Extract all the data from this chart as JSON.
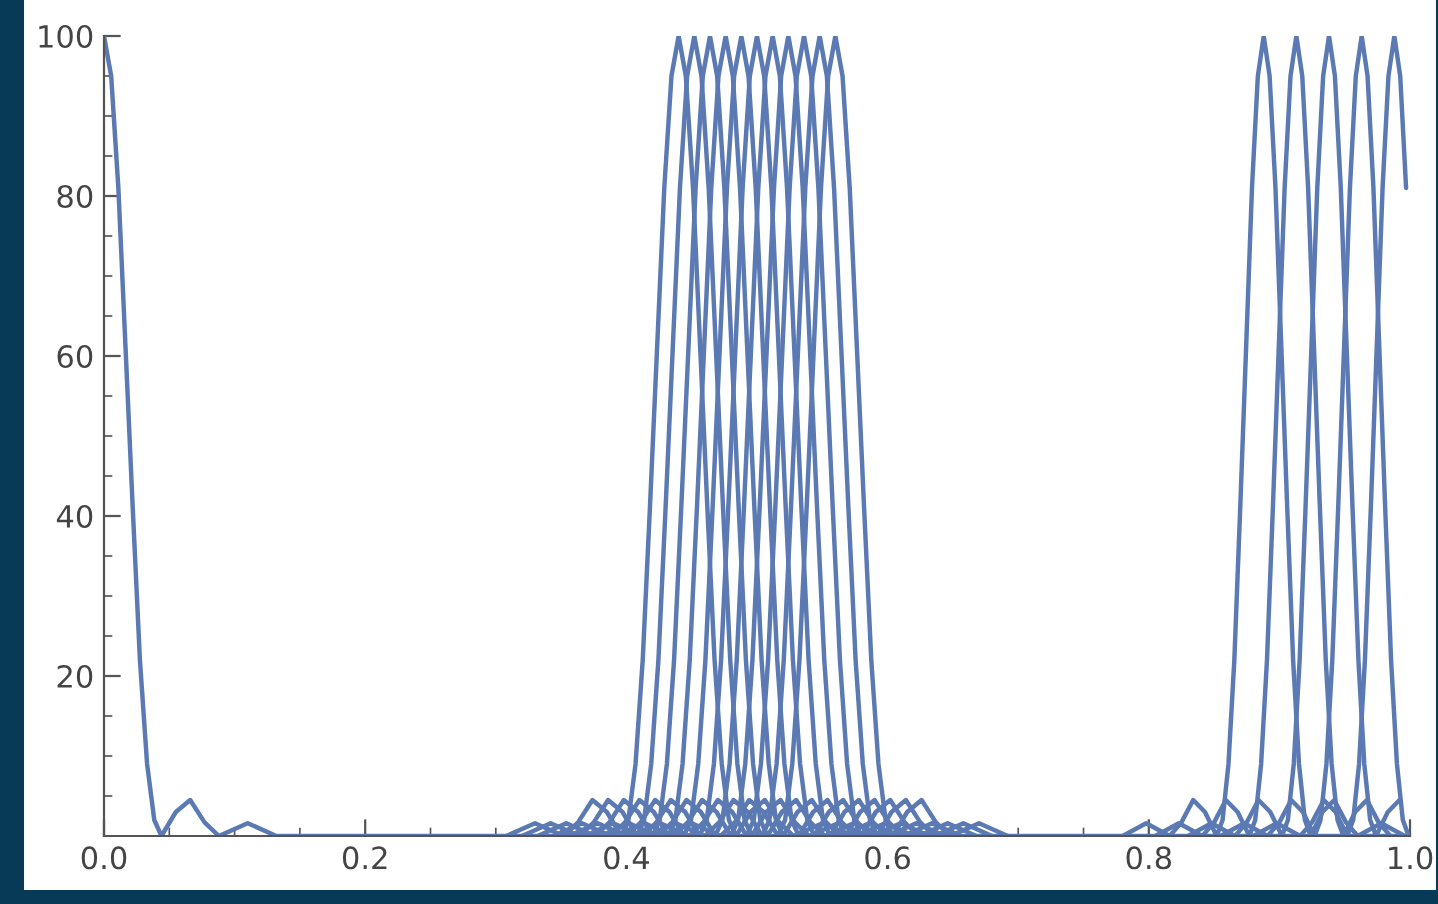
{
  "chart_data": {
    "type": "line",
    "xlim": [
      0,
      1.0
    ],
    "ylim": [
      0,
      100
    ],
    "xticks": [
      {
        "value": 0,
        "label": "0.0"
      },
      0.2,
      0.4,
      0.6,
      0.8,
      {
        "value": 1.0,
        "label": "1.0"
      }
    ],
    "yticks": [
      20,
      40,
      60,
      80,
      100
    ],
    "series": [
      {
        "color": "#5b79b3",
        "x": [
          0,
          0.0055,
          0.011,
          0.0165,
          0.022,
          0.0275,
          0.033,
          0.0385,
          0.044,
          0.055,
          0.066,
          0.077,
          0.088,
          0.11,
          0.132,
          1.0
        ],
        "values": [
          100,
          95,
          81,
          61,
          41,
          22,
          9,
          2,
          0,
          3,
          4.5,
          1.7,
          0,
          1.6,
          0,
          0
        ]
      },
      {
        "color": "#5b79b3",
        "x": [
          0.308,
          0.33,
          0.352,
          0.363,
          0.374,
          0.385,
          0.396,
          0.4015,
          0.407,
          0.4125,
          0.418,
          0.4235,
          0.429,
          0.4345,
          0.44,
          0.4455,
          0.451,
          0.4565,
          0.462,
          0.4675,
          0.473,
          0.4785,
          0.484,
          0.495,
          0.506,
          0.517,
          0.528,
          0.55,
          0.572
        ],
        "values": [
          0,
          1.6,
          0,
          1.7,
          4.5,
          3,
          0,
          2,
          9,
          22,
          41,
          61,
          81,
          95,
          100,
          95,
          81,
          61,
          41,
          22,
          9,
          2,
          0,
          3,
          4.5,
          1.7,
          0,
          1.6,
          0
        ]
      },
      {
        "color": "#5b79b3",
        "x": [
          0.32,
          0.342,
          0.364,
          0.375,
          0.386,
          0.397,
          0.408,
          0.4135,
          0.419,
          0.4245,
          0.43,
          0.4355,
          0.441,
          0.4465,
          0.452,
          0.4575,
          0.463,
          0.4685,
          0.474,
          0.4795,
          0.485,
          0.4905,
          0.496,
          0.507,
          0.518,
          0.529,
          0.54,
          0.562,
          0.584
        ],
        "values": [
          0,
          1.6,
          0,
          1.7,
          4.5,
          3,
          0,
          2,
          9,
          22,
          41,
          61,
          81,
          95,
          100,
          95,
          81,
          61,
          41,
          22,
          9,
          2,
          0,
          3,
          4.5,
          1.7,
          0,
          1.6,
          0
        ]
      },
      {
        "color": "#5b79b3",
        "x": [
          0.332,
          0.354,
          0.376,
          0.387,
          0.398,
          0.409,
          0.42,
          0.4255,
          0.431,
          0.4365,
          0.442,
          0.4475,
          0.453,
          0.4585,
          0.464,
          0.4695,
          0.475,
          0.4805,
          0.486,
          0.4915,
          0.497,
          0.5025,
          0.508,
          0.519,
          0.53,
          0.541,
          0.552,
          0.574,
          0.596
        ],
        "values": [
          0,
          1.6,
          0,
          1.7,
          4.5,
          3,
          0,
          2,
          9,
          22,
          41,
          61,
          81,
          95,
          100,
          95,
          81,
          61,
          41,
          22,
          9,
          2,
          0,
          3,
          4.5,
          1.7,
          0,
          1.6,
          0
        ]
      },
      {
        "color": "#5b79b3",
        "x": [
          0.344,
          0.366,
          0.388,
          0.399,
          0.41,
          0.421,
          0.432,
          0.4375,
          0.443,
          0.4485,
          0.454,
          0.4595,
          0.465,
          0.4705,
          0.476,
          0.4815,
          0.487,
          0.4925,
          0.498,
          0.5035,
          0.509,
          0.5145,
          0.52,
          0.531,
          0.542,
          0.553,
          0.564,
          0.586,
          0.608
        ],
        "values": [
          0,
          1.6,
          0,
          1.7,
          4.5,
          3,
          0,
          2,
          9,
          22,
          41,
          61,
          81,
          95,
          100,
          95,
          81,
          61,
          41,
          22,
          9,
          2,
          0,
          3,
          4.5,
          1.7,
          0,
          1.6,
          0
        ]
      },
      {
        "color": "#5b79b3",
        "x": [
          0.356,
          0.378,
          0.4,
          0.411,
          0.422,
          0.433,
          0.444,
          0.4495,
          0.455,
          0.4605,
          0.466,
          0.4715,
          0.477,
          0.4825,
          0.488,
          0.4935,
          0.499,
          0.5045,
          0.51,
          0.5155,
          0.521,
          0.5265,
          0.532,
          0.543,
          0.554,
          0.565,
          0.576,
          0.598,
          0.62
        ],
        "values": [
          0,
          1.6,
          0,
          1.7,
          4.5,
          3,
          0,
          2,
          9,
          22,
          41,
          61,
          81,
          95,
          100,
          95,
          81,
          61,
          41,
          22,
          9,
          2,
          0,
          3,
          4.5,
          1.7,
          0,
          1.6,
          0
        ]
      },
      {
        "color": "#5b79b3",
        "x": [
          0.368,
          0.39,
          0.412,
          0.423,
          0.434,
          0.445,
          0.456,
          0.4615,
          0.467,
          0.4725,
          0.478,
          0.4835,
          0.489,
          0.4945,
          0.5,
          0.5055,
          0.511,
          0.5165,
          0.522,
          0.5275,
          0.533,
          0.5385,
          0.544,
          0.555,
          0.566,
          0.577,
          0.588,
          0.61,
          0.632
        ],
        "values": [
          0,
          1.6,
          0,
          1.7,
          4.5,
          3,
          0,
          2,
          9,
          22,
          41,
          61,
          81,
          95,
          100,
          95,
          81,
          61,
          41,
          22,
          9,
          2,
          0,
          3,
          4.5,
          1.7,
          0,
          1.6,
          0
        ]
      },
      {
        "color": "#5b79b3",
        "x": [
          0.38,
          0.402,
          0.424,
          0.435,
          0.446,
          0.457,
          0.468,
          0.4735,
          0.479,
          0.4845,
          0.49,
          0.4955,
          0.501,
          0.5065,
          0.512,
          0.5175,
          0.523,
          0.5285,
          0.534,
          0.5395,
          0.545,
          0.5505,
          0.556,
          0.567,
          0.578,
          0.589,
          0.6,
          0.622,
          0.644
        ],
        "values": [
          0,
          1.6,
          0,
          1.7,
          4.5,
          3,
          0,
          2,
          9,
          22,
          41,
          61,
          81,
          95,
          100,
          95,
          81,
          61,
          41,
          22,
          9,
          2,
          0,
          3,
          4.5,
          1.7,
          0,
          1.6,
          0
        ]
      },
      {
        "color": "#5b79b3",
        "x": [
          0.392,
          0.414,
          0.436,
          0.447,
          0.458,
          0.469,
          0.48,
          0.4855,
          0.491,
          0.4965,
          0.502,
          0.5075,
          0.513,
          0.5185,
          0.524,
          0.5295,
          0.535,
          0.5405,
          0.546,
          0.5515,
          0.557,
          0.5625,
          0.568,
          0.579,
          0.59,
          0.601,
          0.612,
          0.634,
          0.656
        ],
        "values": [
          0,
          1.6,
          0,
          1.7,
          4.5,
          3,
          0,
          2,
          9,
          22,
          41,
          61,
          81,
          95,
          100,
          95,
          81,
          61,
          41,
          22,
          9,
          2,
          0,
          3,
          4.5,
          1.7,
          0,
          1.6,
          0
        ]
      },
      {
        "color": "#5b79b3",
        "x": [
          0.404,
          0.426,
          0.448,
          0.459,
          0.47,
          0.481,
          0.492,
          0.4975,
          0.503,
          0.5085,
          0.514,
          0.5195,
          0.525,
          0.5305,
          0.536,
          0.5415,
          0.547,
          0.5525,
          0.558,
          0.5635,
          0.569,
          0.5745,
          0.58,
          0.591,
          0.602,
          0.613,
          0.624,
          0.646,
          0.668
        ],
        "values": [
          0,
          1.6,
          0,
          1.7,
          4.5,
          3,
          0,
          2,
          9,
          22,
          41,
          61,
          81,
          95,
          100,
          95,
          81,
          61,
          41,
          22,
          9,
          2,
          0,
          3,
          4.5,
          1.7,
          0,
          1.6,
          0
        ]
      },
      {
        "color": "#5b79b3",
        "x": [
          0.416,
          0.438,
          0.46,
          0.471,
          0.482,
          0.493,
          0.504,
          0.5095,
          0.515,
          0.5205,
          0.526,
          0.5315,
          0.537,
          0.5425,
          0.548,
          0.5535,
          0.559,
          0.5645,
          0.57,
          0.5755,
          0.581,
          0.5865,
          0.592,
          0.603,
          0.614,
          0.625,
          0.636,
          0.658,
          0.68
        ],
        "values": [
          0,
          1.6,
          0,
          1.7,
          4.5,
          3,
          0,
          2,
          9,
          22,
          41,
          61,
          81,
          95,
          100,
          95,
          81,
          61,
          41,
          22,
          9,
          2,
          0,
          3,
          4.5,
          1.7,
          0,
          1.6,
          0
        ]
      },
      {
        "color": "#5b79b3",
        "x": [
          0.428,
          0.45,
          0.472,
          0.483,
          0.494,
          0.505,
          0.516,
          0.5215,
          0.527,
          0.5325,
          0.538,
          0.5435,
          0.549,
          0.5545,
          0.56,
          0.5655,
          0.571,
          0.5765,
          0.582,
          0.5875,
          0.593,
          0.5985,
          0.604,
          0.615,
          0.626,
          0.637,
          0.648,
          0.67,
          0.692
        ],
        "values": [
          0,
          1.6,
          0,
          1.7,
          4.5,
          3,
          0,
          2,
          9,
          22,
          41,
          61,
          81,
          95,
          100,
          95,
          81,
          61,
          41,
          22,
          9,
          2,
          0,
          3,
          4.5,
          1.7,
          0,
          1.6,
          0
        ]
      },
      {
        "color": "#5b79b3",
        "x": [
          0.78,
          0.798,
          0.816,
          0.825,
          0.834,
          0.843,
          0.852,
          0.8565,
          0.861,
          0.8655,
          0.87,
          0.8745,
          0.879,
          0.8835,
          0.888,
          0.8925,
          0.897,
          0.9015,
          0.906,
          0.9105,
          0.915,
          0.9195,
          0.924,
          0.933,
          0.942,
          0.951,
          0.96,
          0.978,
          0.996
        ],
        "values": [
          0,
          1.6,
          0,
          1.7,
          4.5,
          3,
          0,
          2,
          9,
          22,
          41,
          61,
          81,
          95,
          100,
          95,
          81,
          61,
          41,
          22,
          9,
          2,
          0,
          3,
          4.5,
          1.7,
          0,
          1.6,
          0
        ]
      },
      {
        "color": "#5b79b3",
        "x": [
          0.805,
          0.823,
          0.841,
          0.85,
          0.859,
          0.868,
          0.877,
          0.8815,
          0.886,
          0.8905,
          0.895,
          0.8995,
          0.904,
          0.9085,
          0.913,
          0.9175,
          0.922,
          0.9265,
          0.931,
          0.9355,
          0.94,
          0.9445,
          0.949,
          0.958,
          0.967,
          0.976,
          0.985
        ],
        "values": [
          0,
          1.6,
          0,
          1.7,
          4.5,
          3,
          0,
          2,
          9,
          22,
          41,
          61,
          81,
          95,
          100,
          95,
          81,
          61,
          41,
          22,
          9,
          2,
          0,
          3,
          4.5,
          1.7,
          0
        ]
      },
      {
        "color": "#5b79b3",
        "x": [
          0.83,
          0.848,
          0.866,
          0.875,
          0.884,
          0.893,
          0.902,
          0.9065,
          0.911,
          0.9155,
          0.92,
          0.9245,
          0.929,
          0.9335,
          0.938,
          0.9425,
          0.947,
          0.9515,
          0.956,
          0.9605,
          0.965,
          0.9695,
          0.974,
          0.983,
          0.992
        ],
        "values": [
          0,
          1.6,
          0,
          1.7,
          4.5,
          3,
          0,
          2,
          9,
          22,
          41,
          61,
          81,
          95,
          100,
          95,
          81,
          61,
          41,
          22,
          9,
          2,
          0,
          3,
          4.5
        ]
      },
      {
        "color": "#5b79b3",
        "x": [
          0.855,
          0.873,
          0.891,
          0.9,
          0.909,
          0.918,
          0.927,
          0.9315,
          0.936,
          0.9405,
          0.945,
          0.9495,
          0.954,
          0.9585,
          0.963,
          0.9675,
          0.972,
          0.9765,
          0.981,
          0.9855,
          0.99,
          0.9945,
          0.999
        ],
        "values": [
          0,
          1.6,
          0,
          1.7,
          4.5,
          3,
          0,
          2,
          9,
          22,
          41,
          61,
          81,
          95,
          100,
          95,
          81,
          61,
          41,
          22,
          9,
          2,
          0
        ]
      },
      {
        "color": "#5b79b3",
        "x": [
          0.88,
          0.898,
          0.916,
          0.925,
          0.934,
          0.943,
          0.952,
          0.9565,
          0.961,
          0.9655,
          0.97,
          0.9745,
          0.979,
          0.9835,
          0.988,
          0.9925,
          0.997
        ],
        "values": [
          0,
          1.6,
          0,
          1.7,
          4.5,
          3,
          0,
          2,
          9,
          22,
          41,
          61,
          81,
          95,
          100,
          95,
          81
        ]
      }
    ]
  }
}
